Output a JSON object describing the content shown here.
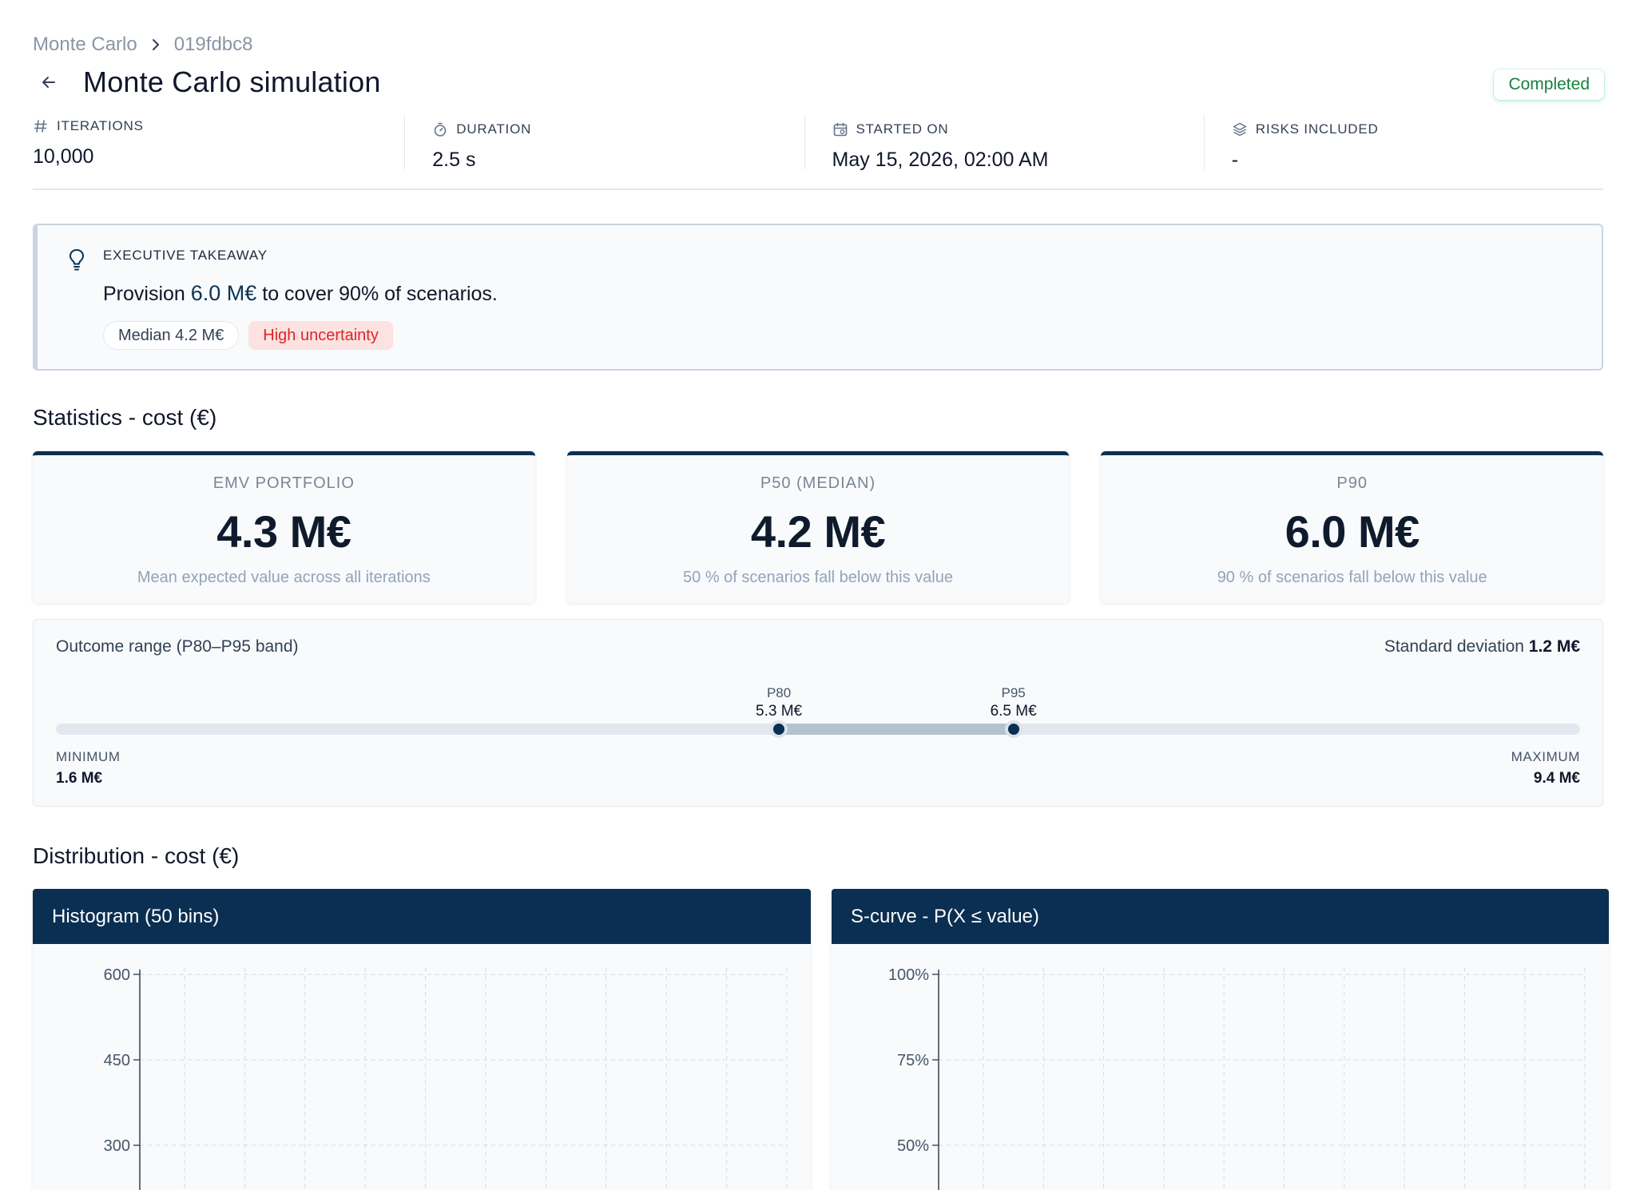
{
  "breadcrumb": {
    "root": "Monte Carlo",
    "current": "019fdbc8"
  },
  "header": {
    "title": "Monte Carlo simulation",
    "status": "Completed"
  },
  "meta": [
    {
      "label": "ITERATIONS",
      "value": "10,000",
      "icon": "hash-icon"
    },
    {
      "label": "DURATION",
      "value": "2.5 s",
      "icon": "timer-icon"
    },
    {
      "label": "STARTED ON",
      "value": "May 15, 2026, 02:00 AM",
      "icon": "calendar-icon"
    },
    {
      "label": "RISKS INCLUDED",
      "value": "-",
      "icon": "layers-icon"
    }
  ],
  "takeaway": {
    "label": "EXECUTIVE TAKEAWAY",
    "text_pre": "Provision ",
    "text_value": "6.0 M€",
    "text_post": " to cover 90% of scenarios.",
    "chip_median": "Median 4.2 M€",
    "chip_uncertainty": "High uncertainty"
  },
  "statistics": {
    "title": "Statistics - cost (€)",
    "cards": [
      {
        "label": "EMV PORTFOLIO",
        "value": "4.3 M€",
        "sub": "Mean expected value across all iterations"
      },
      {
        "label": "P50 (MEDIAN)",
        "value": "4.2 M€",
        "sub": "50 % of scenarios fall below this value"
      },
      {
        "label": "P90",
        "value": "6.0 M€",
        "sub": "90 % of scenarios fall below this value"
      }
    ]
  },
  "range": {
    "title": "Outcome range (P80–P95 band)",
    "std_label": "Standard deviation",
    "std_value": "1.2 M€",
    "min_label": "MINIMUM",
    "min_value": "1.6 M€",
    "max_label": "MAXIMUM",
    "max_value": "9.4 M€",
    "p80_label": "P80",
    "p80_value": "5.3 M€",
    "p95_label": "P95",
    "p95_value": "6.5 M€",
    "min_num": 1.6,
    "max_num": 9.4,
    "p80_num": 5.3,
    "p95_num": 6.5
  },
  "distribution": {
    "title": "Distribution - cost (€)",
    "histogram_title": "Histogram (50 bins)",
    "scurve_title": "S-curve - P(X ≤ value)"
  },
  "chart_data": [
    {
      "type": "bar",
      "title": "Histogram (50 bins)",
      "y_ticks": [
        600,
        450,
        300
      ],
      "y_tick_labels": [
        "600",
        "450",
        "300"
      ],
      "ylim": [
        0,
        600
      ],
      "grid": true
    },
    {
      "type": "line",
      "title": "S-curve - P(X ≤ value)",
      "y_ticks": [
        100,
        75,
        50
      ],
      "y_tick_labels": [
        "100%",
        "75%",
        "50%"
      ],
      "ylim": [
        0,
        100
      ],
      "grid": true
    }
  ]
}
